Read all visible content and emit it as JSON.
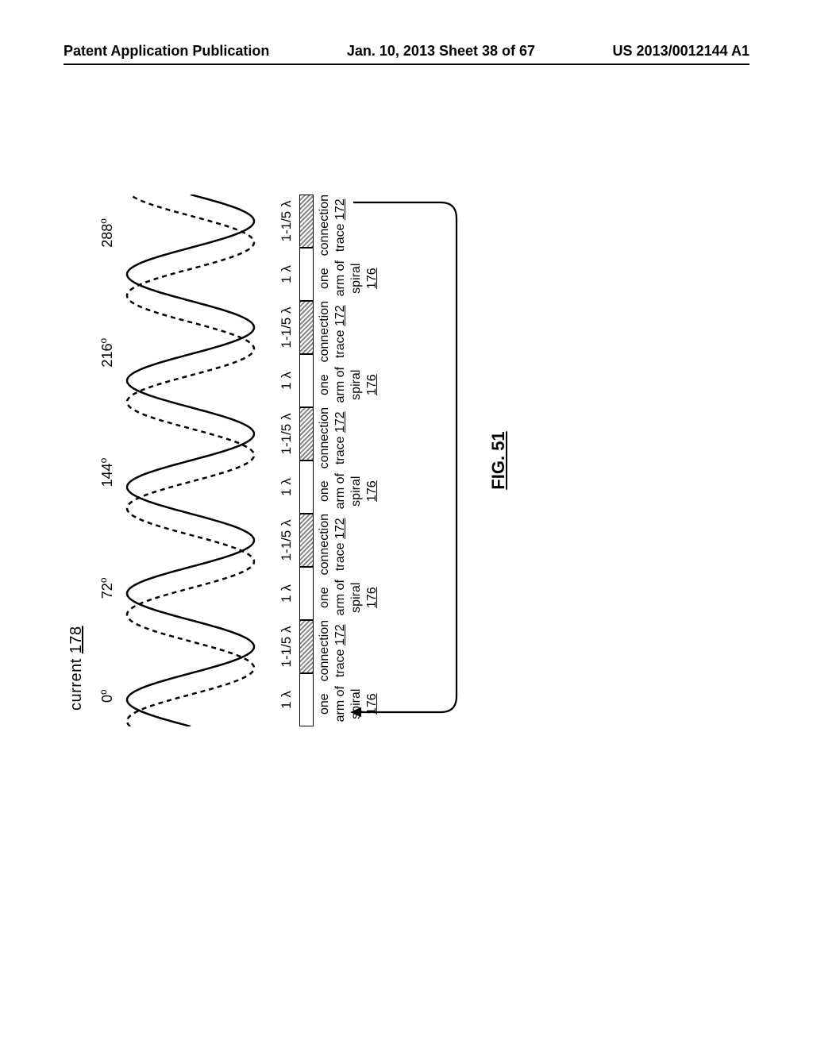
{
  "header": {
    "left": "Patent Application Publication",
    "center": "Jan. 10, 2013  Sheet 38 of 67",
    "right": "US 2013/0012144 A1"
  },
  "figure": {
    "current_label": "current",
    "current_ref": "178",
    "phase_labels": [
      "0°",
      "72°",
      "144°",
      "216°",
      "288°"
    ],
    "wave": {
      "solid_stroke": "#000000",
      "dashed_stroke": "#000000",
      "stroke_width": 2.5,
      "dash_pattern": "6 5",
      "n_cycles": 5,
      "amplitude": 80,
      "phase_offset_deg": 72
    },
    "segments": [
      {
        "lambda": "1 λ",
        "type": "arm",
        "label_top": "one arm of",
        "label_bot": "spiral",
        "ref": "176"
      },
      {
        "lambda": "1-1/5 λ",
        "type": "conn",
        "label_top": "connection",
        "label_bot": "trace",
        "ref": "172"
      },
      {
        "lambda": "1 λ",
        "type": "arm",
        "label_top": "one arm of",
        "label_bot": "spiral",
        "ref": "176"
      },
      {
        "lambda": "1-1/5 λ",
        "type": "conn",
        "label_top": "connection",
        "label_bot": "trace",
        "ref": "172"
      },
      {
        "lambda": "1 λ",
        "type": "arm",
        "label_top": "one arm of",
        "label_bot": "spiral",
        "ref": "176"
      },
      {
        "lambda": "1-1/5 λ",
        "type": "conn",
        "label_top": "connection",
        "label_bot": "trace",
        "ref": "172"
      },
      {
        "lambda": "1 λ",
        "type": "arm",
        "label_top": "one arm of",
        "label_bot": "spiral",
        "ref": "176"
      },
      {
        "lambda": "1-1/5 λ",
        "type": "conn",
        "label_top": "connection",
        "label_bot": "trace",
        "ref": "172"
      },
      {
        "lambda": "1 λ",
        "type": "arm",
        "label_top": "one arm of",
        "label_bot": "spiral",
        "ref": "176"
      },
      {
        "lambda": "1-1/5 λ",
        "type": "conn",
        "label_top": "connection",
        "label_bot": "trace",
        "ref": "172"
      }
    ],
    "fig_label": "FIG. 51",
    "feedback": {
      "stroke": "#000000",
      "stroke_width": 2.2,
      "arrow_size": 10
    },
    "colors": {
      "background": "#ffffff",
      "text": "#000000"
    },
    "fonts": {
      "header_size_pt": 14,
      "label_size_pt": 13,
      "fig_label_size_pt": 17
    }
  }
}
